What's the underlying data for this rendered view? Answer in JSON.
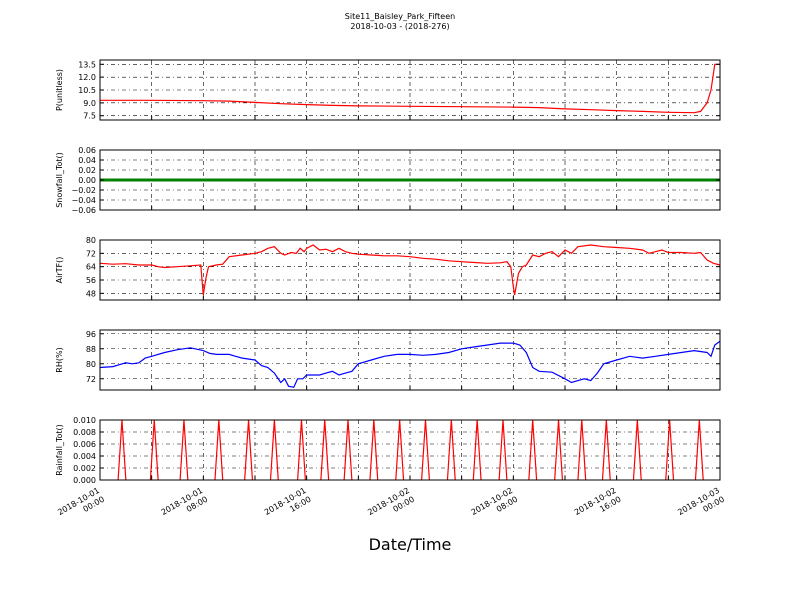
{
  "figure": {
    "title_line1": "Site11_Baisley_Park_Fifteen",
    "title_line2": "2018-10-03 - (2018-276)",
    "xlabel": "Date/Time"
  },
  "chart_data": {
    "type": "line",
    "x_axis": {
      "range": [
        "2018-10-01 00:00",
        "2018-10-03 00:00"
      ],
      "ticks": [
        {
          "hours": 0,
          "line1": "2018-10-01",
          "line2": "00:00"
        },
        {
          "hours": 8,
          "line1": "2018-10-01",
          "line2": "08:00"
        },
        {
          "hours": 16,
          "line1": "2018-10-01",
          "line2": "16:00"
        },
        {
          "hours": 24,
          "line1": "2018-10-02",
          "line2": "00:00"
        },
        {
          "hours": 32,
          "line1": "2018-10-02",
          "line2": "08:00"
        },
        {
          "hours": 40,
          "line1": "2018-10-02",
          "line2": "16:00"
        },
        {
          "hours": 48,
          "line1": "2018-10-03",
          "line2": "00:00"
        }
      ],
      "grid_hours": [
        0,
        4,
        8,
        12,
        16,
        20,
        24,
        28,
        32,
        36,
        40,
        44,
        48
      ]
    },
    "panels": [
      {
        "id": "pressure",
        "ylabel": "P(unitless)",
        "ylim": [
          7,
          14
        ],
        "yticks": [
          7.5,
          9.0,
          10.5,
          12.0,
          13.5
        ],
        "ytick_labels": [
          "7.5",
          "9.0",
          "10.5",
          "12.0",
          "13.5"
        ],
        "color": "#ff0000",
        "points": [
          [
            0,
            9.3
          ],
          [
            4,
            9.3
          ],
          [
            8,
            9.25
          ],
          [
            10,
            9.2
          ],
          [
            12,
            9.05
          ],
          [
            14,
            8.9
          ],
          [
            16,
            8.8
          ],
          [
            18,
            8.7
          ],
          [
            20,
            8.65
          ],
          [
            24,
            8.6
          ],
          [
            28,
            8.55
          ],
          [
            32,
            8.5
          ],
          [
            34,
            8.45
          ],
          [
            36,
            8.3
          ],
          [
            38,
            8.2
          ],
          [
            40,
            8.1
          ],
          [
            42,
            8.0
          ],
          [
            44,
            7.9
          ],
          [
            46,
            7.85
          ],
          [
            46.5,
            8.0
          ],
          [
            47,
            9.0
          ],
          [
            47.3,
            10.5
          ],
          [
            47.6,
            13.5
          ],
          [
            48,
            13.5
          ]
        ]
      },
      {
        "id": "snowfall",
        "ylabel": "Snowfall_Tot()",
        "ylim": [
          -0.06,
          0.06
        ],
        "yticks": [
          -0.06,
          -0.04,
          -0.02,
          0.0,
          0.02,
          0.04,
          0.06
        ],
        "ytick_labels": [
          "−0.06",
          "−0.04",
          "−0.02",
          "0.00",
          "0.02",
          "0.04",
          "0.06"
        ],
        "color": "#008000",
        "points": [
          [
            0,
            0
          ],
          [
            48,
            0
          ]
        ]
      },
      {
        "id": "airtemp",
        "ylabel": "AirTF()",
        "ylim": [
          44,
          80
        ],
        "yticks": [
          48,
          56,
          64,
          72,
          80
        ],
        "ytick_labels": [
          "48",
          "56",
          "64",
          "72",
          "80"
        ],
        "color": "#ff0000",
        "points": [
          [
            0,
            66
          ],
          [
            1,
            65.5
          ],
          [
            2,
            65.8
          ],
          [
            3,
            65
          ],
          [
            4,
            65
          ],
          [
            4.5,
            64
          ],
          [
            5,
            63.5
          ],
          [
            6,
            64
          ],
          [
            7,
            64.5
          ],
          [
            7.8,
            65
          ],
          [
            7.9,
            56
          ],
          [
            8.0,
            47
          ],
          [
            8.2,
            57
          ],
          [
            8.4,
            64
          ],
          [
            9,
            65
          ],
          [
            9.5,
            65.5
          ],
          [
            10,
            70
          ],
          [
            11,
            71
          ],
          [
            12,
            72
          ],
          [
            12.5,
            73
          ],
          [
            13,
            75
          ],
          [
            13.5,
            76
          ],
          [
            14,
            72
          ],
          [
            14.3,
            71
          ],
          [
            14.8,
            72.5
          ],
          [
            15.2,
            72
          ],
          [
            15.5,
            75
          ],
          [
            15.8,
            73
          ],
          [
            16,
            75
          ],
          [
            16.5,
            77
          ],
          [
            17,
            74
          ],
          [
            17.5,
            74.5
          ],
          [
            18,
            73
          ],
          [
            18.5,
            75
          ],
          [
            19,
            73
          ],
          [
            19.5,
            72
          ],
          [
            20,
            71.5
          ],
          [
            21,
            71
          ],
          [
            22,
            70.5
          ],
          [
            23,
            70.5
          ],
          [
            24,
            70
          ],
          [
            25,
            69
          ],
          [
            26,
            68.5
          ],
          [
            27,
            67.5
          ],
          [
            28,
            67
          ],
          [
            29,
            66.5
          ],
          [
            30,
            66
          ],
          [
            31,
            66.3
          ],
          [
            31.5,
            67
          ],
          [
            31.8,
            64
          ],
          [
            32,
            52
          ],
          [
            32.1,
            47
          ],
          [
            32.4,
            60
          ],
          [
            32.7,
            64
          ],
          [
            33,
            65
          ],
          [
            33.5,
            71
          ],
          [
            34,
            70
          ],
          [
            34.5,
            72
          ],
          [
            35,
            73
          ],
          [
            35.5,
            70
          ],
          [
            36,
            74
          ],
          [
            36.5,
            72
          ],
          [
            37,
            76
          ],
          [
            38,
            77
          ],
          [
            39,
            76
          ],
          [
            40,
            75.5
          ],
          [
            41,
            75
          ],
          [
            42,
            74
          ],
          [
            42.5,
            72
          ],
          [
            43,
            73
          ],
          [
            43.5,
            74
          ],
          [
            44,
            72.5
          ],
          [
            45,
            72.5
          ],
          [
            46,
            72
          ],
          [
            46.5,
            72.5
          ],
          [
            47,
            68
          ],
          [
            47.5,
            66
          ],
          [
            48,
            65
          ]
        ]
      },
      {
        "id": "rh",
        "ylabel": "RH(%)",
        "ylim": [
          66,
          98
        ],
        "yticks": [
          72,
          80,
          88,
          96
        ],
        "ytick_labels": [
          "72",
          "80",
          "88",
          "96"
        ],
        "color": "#0000ff",
        "points": [
          [
            0,
            78
          ],
          [
            1,
            78.5
          ],
          [
            1.5,
            79.5
          ],
          [
            2,
            80.5
          ],
          [
            2.5,
            80
          ],
          [
            3,
            80.5
          ],
          [
            3.5,
            83
          ],
          [
            4,
            84
          ],
          [
            5,
            86
          ],
          [
            6,
            87.5
          ],
          [
            7,
            88.5
          ],
          [
            8,
            87
          ],
          [
            8.5,
            85.5
          ],
          [
            9,
            85
          ],
          [
            10,
            85
          ],
          [
            10.5,
            84
          ],
          [
            11,
            83
          ],
          [
            12,
            82
          ],
          [
            12.5,
            79
          ],
          [
            13,
            78
          ],
          [
            13.5,
            75
          ],
          [
            14,
            70
          ],
          [
            14.3,
            72
          ],
          [
            14.6,
            68
          ],
          [
            15,
            67.5
          ],
          [
            15.3,
            72
          ],
          [
            15.7,
            72
          ],
          [
            16,
            74
          ],
          [
            17,
            74
          ],
          [
            17.5,
            75
          ],
          [
            18,
            76
          ],
          [
            18.5,
            74
          ],
          [
            19,
            75
          ],
          [
            19.5,
            76
          ],
          [
            20,
            80
          ],
          [
            21,
            82
          ],
          [
            22,
            84
          ],
          [
            23,
            85
          ],
          [
            24,
            85
          ],
          [
            25,
            84.5
          ],
          [
            26,
            85
          ],
          [
            27,
            86
          ],
          [
            28,
            88
          ],
          [
            29,
            89
          ],
          [
            30,
            90
          ],
          [
            31,
            91
          ],
          [
            32,
            91
          ],
          [
            32.5,
            90
          ],
          [
            33,
            86
          ],
          [
            33.5,
            78
          ],
          [
            34,
            76
          ],
          [
            35,
            75.5
          ],
          [
            36,
            72
          ],
          [
            36.5,
            70
          ],
          [
            37,
            71
          ],
          [
            37.5,
            72
          ],
          [
            38,
            71
          ],
          [
            38.5,
            75
          ],
          [
            39,
            80
          ],
          [
            40,
            82
          ],
          [
            41,
            84
          ],
          [
            42,
            83
          ],
          [
            43,
            84
          ],
          [
            44,
            85
          ],
          [
            45,
            86
          ],
          [
            46,
            87
          ],
          [
            47,
            86
          ],
          [
            47.3,
            84
          ],
          [
            47.6,
            90
          ],
          [
            48,
            92
          ]
        ]
      },
      {
        "id": "rainfall",
        "ylabel": "Rainfall_Tot()",
        "ylim": [
          0,
          0.01
        ],
        "yticks": [
          0.0,
          0.002,
          0.004,
          0.006,
          0.008,
          0.01
        ],
        "ytick_labels": [
          "0.000",
          "0.002",
          "0.004",
          "0.006",
          "0.008",
          "0.010"
        ],
        "color": "#ff0000",
        "spike_value": 0.01,
        "spike_hours": [
          1.7,
          4.2,
          6.5,
          9.2,
          11.5,
          13.5,
          15.6,
          17.4,
          19.2,
          21.2,
          23.2,
          25.2,
          27.2,
          29.2,
          31.2,
          33.5,
          35.5,
          37.3,
          39.2,
          41.6,
          44.1,
          46.4
        ]
      }
    ]
  }
}
